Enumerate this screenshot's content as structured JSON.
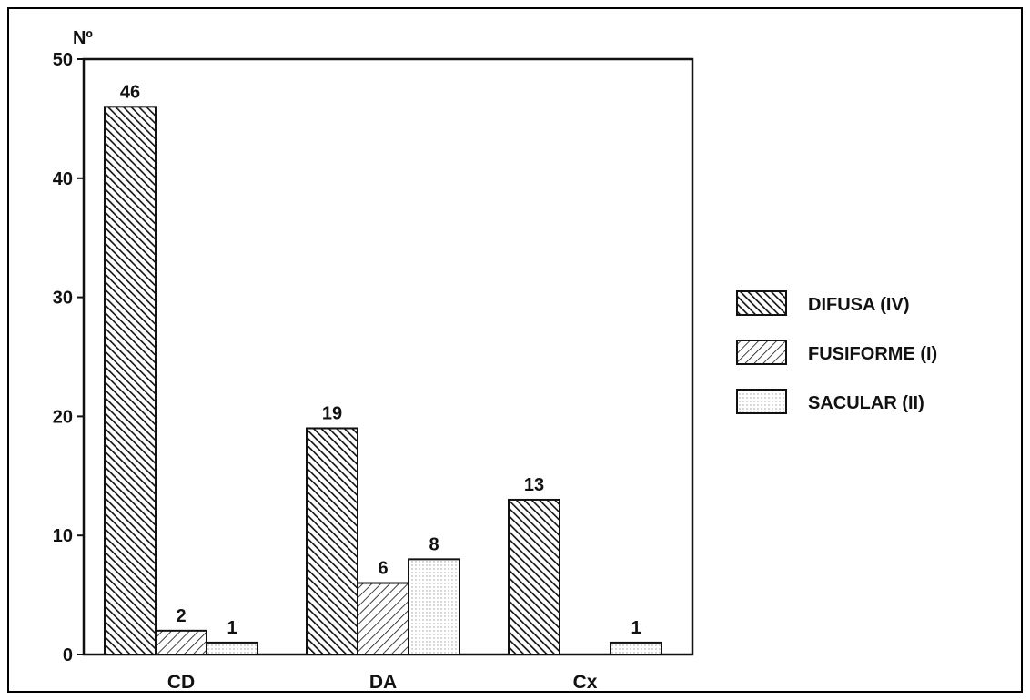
{
  "chart_data": {
    "type": "bar",
    "ylabel": "Nº",
    "xlabel": "",
    "ylim": [
      0,
      50
    ],
    "yticks": [
      0,
      10,
      20,
      30,
      40,
      50
    ],
    "grid": false,
    "legend_position": "right",
    "categories": [
      "CD",
      "DA",
      "Cx"
    ],
    "series": [
      {
        "name": "DIFUSA (IV)",
        "pattern": "dense-backslash",
        "values": [
          46,
          19,
          13
        ],
        "labels": [
          "46",
          "19",
          "13"
        ]
      },
      {
        "name": "FUSIFORME (I)",
        "pattern": "slash",
        "values": [
          2,
          6,
          0
        ],
        "labels": [
          "2",
          "6",
          ""
        ]
      },
      {
        "name": "SACULAR (II)",
        "pattern": "dots",
        "values": [
          1,
          8,
          1
        ],
        "labels": [
          "1",
          "8",
          "1"
        ]
      }
    ]
  },
  "colors": {
    "ink": "#111111",
    "background": "#ffffff"
  }
}
